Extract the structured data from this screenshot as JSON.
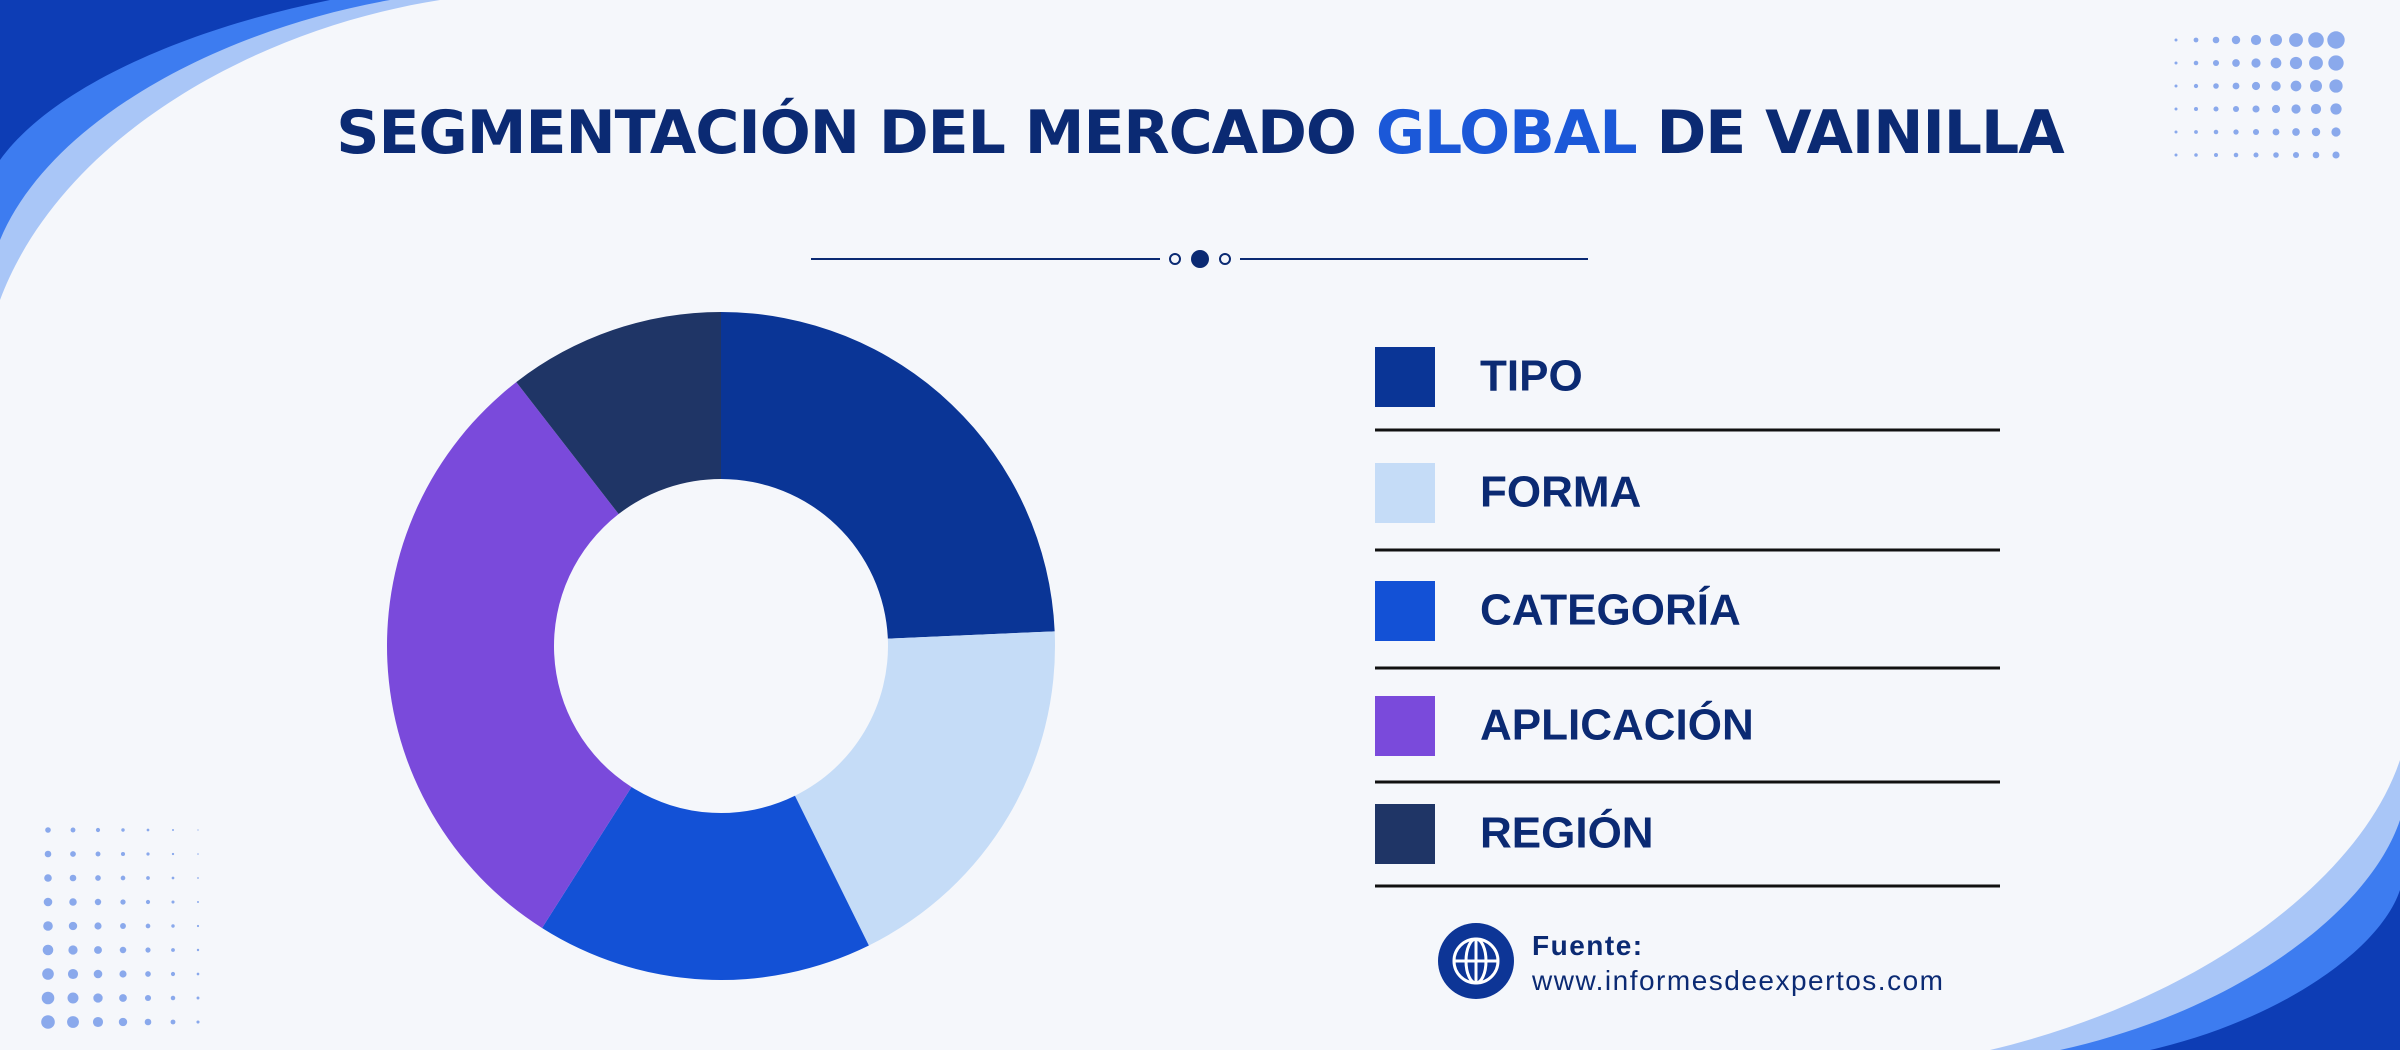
{
  "chart_data": {
    "type": "donut",
    "title_parts": [
      "SEGMENTACIÓN DEL MERCADO",
      "GLOBAL",
      "DE VAINILLA"
    ],
    "categories": [
      "TIPO",
      "FORMA",
      "CATEGORÍA",
      "APLICACIÓN",
      "REGIÓN"
    ],
    "values": [
      24.3,
      18.4,
      16.3,
      30.5,
      10.5
    ],
    "colors": [
      "#0a3596",
      "#c5dcf7",
      "#1351d6",
      "#7a4adb",
      "#1f3566"
    ],
    "source_label": "Fuente:",
    "source": "www.informesdeexpertos.com"
  }
}
